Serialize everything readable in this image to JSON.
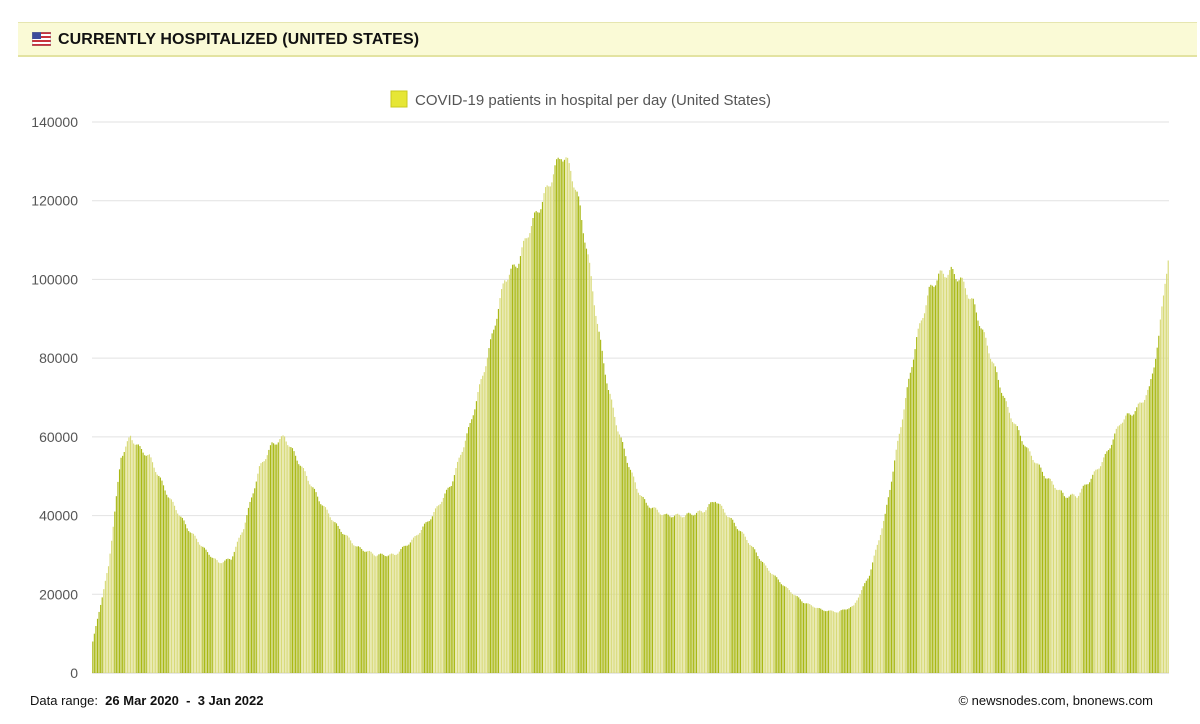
{
  "header": {
    "flag_icon": "us-flag-icon",
    "title": "CURRENTLY HOSPITALIZED (UNITED STATES)"
  },
  "footer": {
    "range_label": "Data range:",
    "range_start": "26 Mar 2020",
    "range_sep": "-",
    "range_end": "3 Jan 2022",
    "copyright": "©  newsnodes.com, bnonews.com"
  },
  "colors": {
    "bar_dark": "#a9b814",
    "bar_mid": "#c8cf3a",
    "bar_light": "#d8da78",
    "legend_swatch": "#e6e635",
    "header_bg": "#fafad6"
  },
  "chart_data": {
    "type": "bar",
    "title": "",
    "legend": [
      "COVID-19 patients in hospital per day (United States)"
    ],
    "xlabel": "",
    "ylabel": "",
    "ylim": [
      0,
      140000
    ],
    "yticks": [
      0,
      20000,
      40000,
      60000,
      80000,
      100000,
      120000,
      140000
    ],
    "grid": true,
    "x_range": [
      "26 Mar 2020",
      "3 Jan 2022"
    ],
    "series": [
      {
        "name": "COVID-19 patients in hospital per day (United States)",
        "keypoints": [
          [
            0,
            8000
          ],
          [
            10,
            27000
          ],
          [
            18,
            55000
          ],
          [
            24,
            60000
          ],
          [
            30,
            57000
          ],
          [
            36,
            55000
          ],
          [
            48,
            45000
          ],
          [
            60,
            37000
          ],
          [
            72,
            31000
          ],
          [
            80,
            28000
          ],
          [
            88,
            29000
          ],
          [
            96,
            37000
          ],
          [
            106,
            52000
          ],
          [
            114,
            58000
          ],
          [
            122,
            60000
          ],
          [
            132,
            53000
          ],
          [
            144,
            44000
          ],
          [
            156,
            37000
          ],
          [
            168,
            32000
          ],
          [
            180,
            30000
          ],
          [
            192,
            30000
          ],
          [
            204,
            34000
          ],
          [
            216,
            40000
          ],
          [
            228,
            48000
          ],
          [
            240,
            63000
          ],
          [
            252,
            82000
          ],
          [
            262,
            100000
          ],
          [
            270,
            104000
          ],
          [
            278,
            113000
          ],
          [
            286,
            120000
          ],
          [
            292,
            126000
          ],
          [
            298,
            132000
          ],
          [
            304,
            128000
          ],
          [
            310,
            118000
          ],
          [
            316,
            103000
          ],
          [
            322,
            86000
          ],
          [
            328,
            72000
          ],
          [
            334,
            62000
          ],
          [
            340,
            54000
          ],
          [
            346,
            47000
          ],
          [
            352,
            43000
          ],
          [
            364,
            40000
          ],
          [
            376,
            40000
          ],
          [
            388,
            41000
          ],
          [
            396,
            44000
          ],
          [
            404,
            40000
          ],
          [
            416,
            34000
          ],
          [
            428,
            27000
          ],
          [
            440,
            22000
          ],
          [
            452,
            18000
          ],
          [
            464,
            16000
          ],
          [
            474,
            15500
          ],
          [
            484,
            17000
          ],
          [
            494,
            25000
          ],
          [
            504,
            40000
          ],
          [
            514,
            63000
          ],
          [
            524,
            85000
          ],
          [
            532,
            97000
          ],
          [
            538,
            101000
          ],
          [
            546,
            102000
          ],
          [
            552,
            100000
          ],
          [
            560,
            94000
          ],
          [
            570,
            82000
          ],
          [
            582,
            67000
          ],
          [
            594,
            57000
          ],
          [
            606,
            50000
          ],
          [
            618,
            45000
          ],
          [
            626,
            45000
          ],
          [
            636,
            50000
          ],
          [
            644,
            55000
          ],
          [
            654,
            64000
          ],
          [
            664,
            67000
          ],
          [
            672,
            72000
          ],
          [
            678,
            85000
          ],
          [
            682,
            100000
          ],
          [
            684,
            105000
          ]
        ]
      }
    ]
  }
}
